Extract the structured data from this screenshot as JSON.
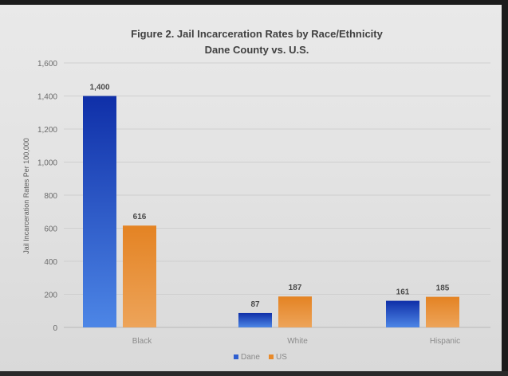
{
  "chart_data": {
    "type": "bar",
    "title_line1": "Figure 2. Jail Incarceration Rates by Race/Ethnicity",
    "title_line2": "Dane County vs. U.S.",
    "ylabel": "Jail Incarceration Rates Per 100,000",
    "xlabel": "",
    "ylim": [
      0,
      1600
    ],
    "yticks": [
      "0",
      "200",
      "400",
      "600",
      "800",
      "1,000",
      "1,200",
      "1,400",
      "1,600"
    ],
    "ytick_values": [
      0,
      200,
      400,
      600,
      800,
      1000,
      1200,
      1400,
      1600
    ],
    "categories": [
      "Black",
      "White",
      "Hispanic"
    ],
    "series": [
      {
        "name": "Dane",
        "values": [
          1400,
          87,
          161
        ],
        "labels": [
          "1,400",
          "87",
          "161"
        ],
        "color": "#2f5fd0"
      },
      {
        "name": "US",
        "values": [
          616,
          187,
          185
        ],
        "labels": [
          "616",
          "187",
          "185"
        ],
        "color": "#e88a2a"
      }
    ],
    "grid": true,
    "legend_position": "bottom"
  }
}
